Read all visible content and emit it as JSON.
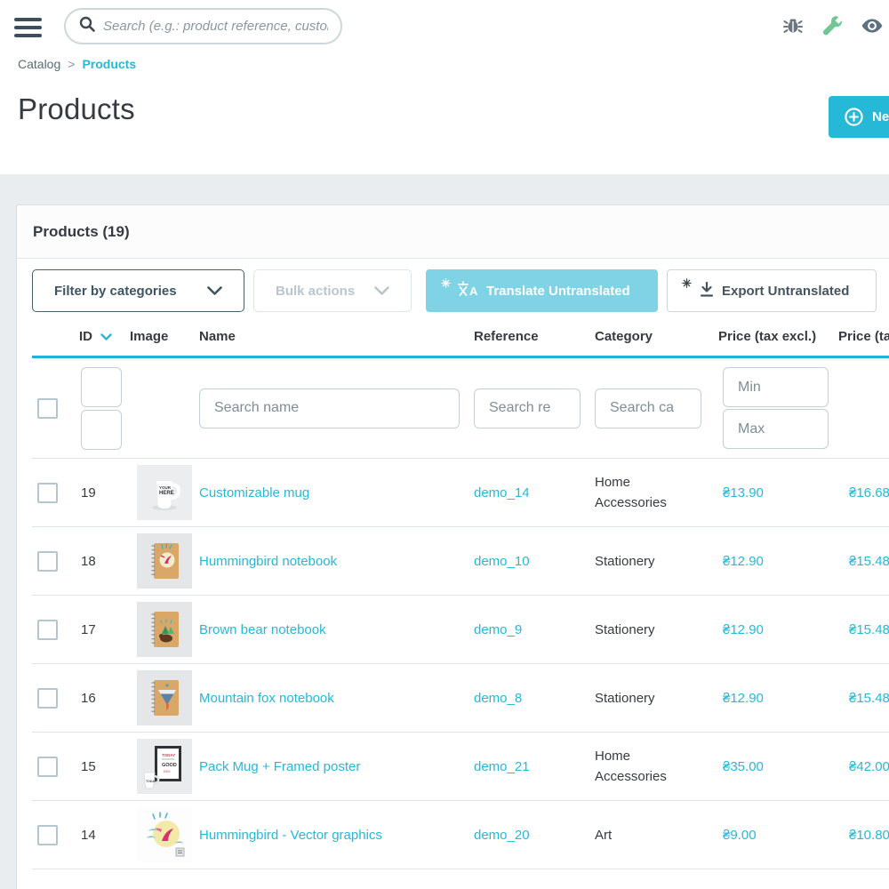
{
  "colors": {
    "accent": "#25b9d7",
    "accent_light": "#7fd3e5",
    "text_dark": "#363a41",
    "wrench_green": "#72c694",
    "page_bg": "#eaedf0"
  },
  "topbar": {
    "search_placeholder": "Search (e.g.: product reference, custon",
    "icons": [
      "bug",
      "wrench",
      "eye"
    ]
  },
  "breadcrumb": {
    "parent": "Catalog",
    "separator": ">",
    "current": "Products"
  },
  "page": {
    "title": "Products",
    "new_button_label": "New product"
  },
  "panel": {
    "title": "Products (19)",
    "toolbar": {
      "filter_by_categories": "Filter by categories",
      "bulk_actions": "Bulk actions",
      "translate_untranslated": "Translate Untranslated",
      "export_untranslated": "Export Untranslated"
    },
    "table": {
      "headers": {
        "id": "ID",
        "image": "Image",
        "name": "Name",
        "reference": "Reference",
        "category": "Category",
        "price_excl": "Price (tax excl.)",
        "price_incl": "Price (tax incl.)"
      },
      "filters": {
        "search_name": "Search name",
        "search_reference": "Search re",
        "search_category": "Search ca",
        "price_min": "Min",
        "price_max": "Max"
      },
      "rows": [
        {
          "id": "19",
          "name": "Customizable mug",
          "reference": "demo_14",
          "category": "Home Accessories",
          "price_excl": "₴13.90",
          "price_incl": "₴16.68",
          "image": "mug"
        },
        {
          "id": "18",
          "name": "Hummingbird notebook",
          "reference": "demo_10",
          "category": "Stationery",
          "price_excl": "₴12.90",
          "price_incl": "₴15.48",
          "image": "notebook-hummingbird"
        },
        {
          "id": "17",
          "name": "Brown bear notebook",
          "reference": "demo_9",
          "category": "Stationery",
          "price_excl": "₴12.90",
          "price_incl": "₴15.48",
          "image": "notebook-bear"
        },
        {
          "id": "16",
          "name": "Mountain fox notebook",
          "reference": "demo_8",
          "category": "Stationery",
          "price_excl": "₴12.90",
          "price_incl": "₴15.48",
          "image": "notebook-fox"
        },
        {
          "id": "15",
          "name": "Pack Mug + Framed poster",
          "reference": "demo_21",
          "category": "Home Accessories",
          "price_excl": "₴35.00",
          "price_incl": "₴42.00",
          "image": "pack-mug-poster"
        },
        {
          "id": "14",
          "name": "Hummingbird - Vector graphics",
          "reference": "demo_20",
          "category": "Art",
          "price_excl": "₴9.00",
          "price_incl": "₴10.80",
          "image": "hummingbird-vector"
        }
      ]
    }
  }
}
